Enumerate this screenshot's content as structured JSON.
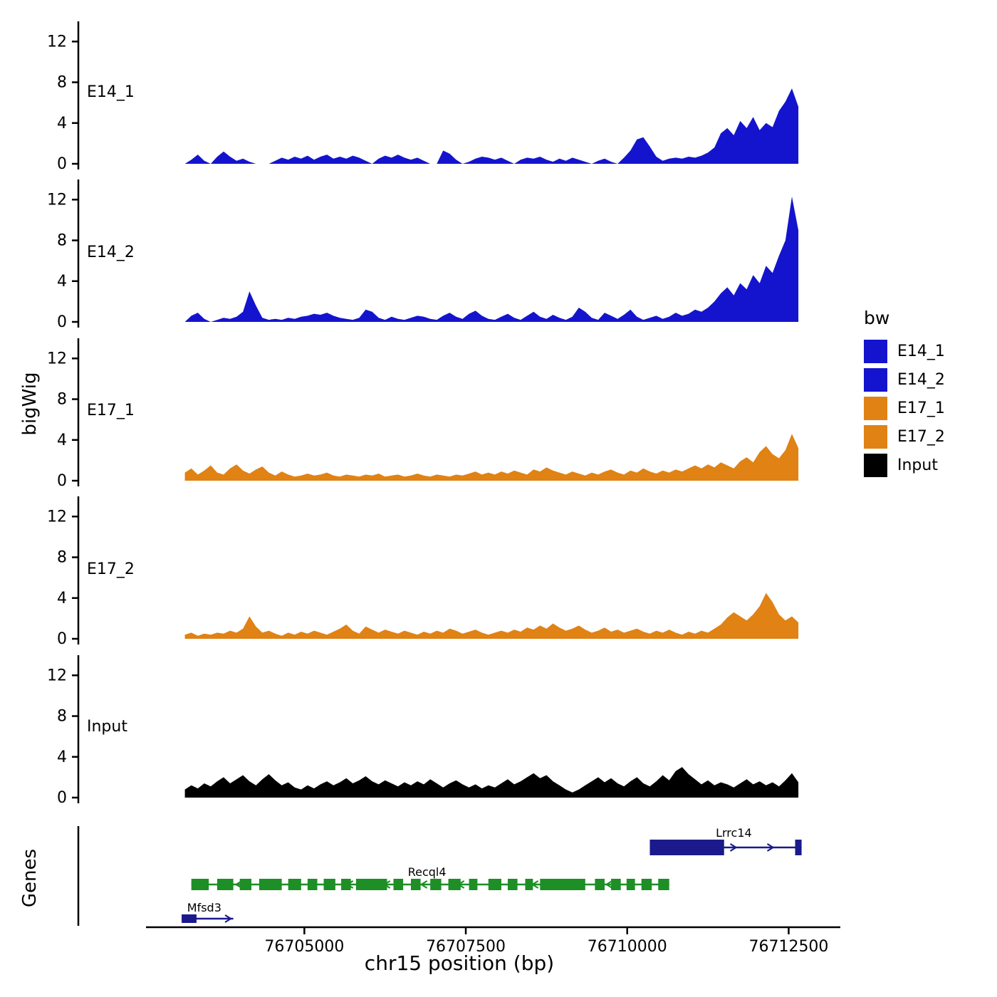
{
  "figure": {
    "ylabel": "bigWig",
    "xlabel": "chr15 position (bp)",
    "genes_label": "Genes",
    "legend": {
      "title": "bw",
      "entries": [
        {
          "label": "E14_1",
          "color": "#1414CE"
        },
        {
          "label": "E14_2",
          "color": "#1414CE"
        },
        {
          "label": "E17_1",
          "color": "#E08214"
        },
        {
          "label": "E17_2",
          "color": "#E08214"
        },
        {
          "label": "Input",
          "color": "#000000"
        }
      ]
    }
  },
  "chart_data": {
    "type": "area",
    "title": "",
    "xlabel": "chr15 position (bp)",
    "ylabel": "bigWig",
    "x_domain": [
      76701500,
      76713300
    ],
    "x_ticks": [
      76705000,
      76707500,
      76710000,
      76712500
    ],
    "y_ticks": [
      0,
      4,
      8,
      12
    ],
    "ylim": [
      0,
      13
    ],
    "series": [
      {
        "name": "E14_1",
        "color": "#1414CE",
        "x0": 76703150,
        "dx": 100,
        "values": [
          0,
          0.4,
          0.9,
          0.3,
          0,
          0.7,
          1.2,
          0.7,
          0.3,
          0.5,
          0.2,
          0,
          0,
          0,
          0.3,
          0.6,
          0.4,
          0.7,
          0.5,
          0.8,
          0.4,
          0.7,
          0.9,
          0.5,
          0.7,
          0.5,
          0.8,
          0.6,
          0.3,
          0,
          0.5,
          0.8,
          0.6,
          0.9,
          0.6,
          0.4,
          0.6,
          0.3,
          0,
          0,
          1.3,
          1.0,
          0.4,
          0,
          0.2,
          0.5,
          0.7,
          0.6,
          0.4,
          0.6,
          0.3,
          0,
          0.4,
          0.6,
          0.5,
          0.7,
          0.4,
          0.2,
          0.5,
          0.3,
          0.6,
          0.4,
          0.2,
          0,
          0.3,
          0.5,
          0.2,
          0,
          0.6,
          1.3,
          2.4,
          2.6,
          1.7,
          0.7,
          0.3,
          0.5,
          0.6,
          0.5,
          0.7,
          0.6,
          0.8,
          1.1,
          1.6,
          3.0,
          3.5,
          2.8,
          4.2,
          3.5,
          4.6,
          3.3,
          4.0,
          3.6,
          5.2,
          6.1,
          7.4,
          5.6
        ]
      },
      {
        "name": "E14_2",
        "color": "#1414CE",
        "x0": 76703150,
        "dx": 100,
        "values": [
          0,
          0.6,
          0.9,
          0.3,
          0,
          0.2,
          0.4,
          0.3,
          0.5,
          1.0,
          3.0,
          1.6,
          0.4,
          0.2,
          0.3,
          0.2,
          0.4,
          0.3,
          0.5,
          0.6,
          0.8,
          0.7,
          0.9,
          0.6,
          0.4,
          0.3,
          0.2,
          0.4,
          1.2,
          1.0,
          0.4,
          0.2,
          0.5,
          0.3,
          0.2,
          0.4,
          0.6,
          0.5,
          0.3,
          0.2,
          0.6,
          0.9,
          0.5,
          0.3,
          0.8,
          1.1,
          0.6,
          0.3,
          0.2,
          0.5,
          0.8,
          0.4,
          0.2,
          0.6,
          1.0,
          0.5,
          0.3,
          0.7,
          0.4,
          0.2,
          0.5,
          1.4,
          1.0,
          0.4,
          0.2,
          0.9,
          0.6,
          0.3,
          0.7,
          1.2,
          0.5,
          0.2,
          0.4,
          0.6,
          0.3,
          0.5,
          0.9,
          0.6,
          0.8,
          1.2,
          1.0,
          1.4,
          2.0,
          2.8,
          3.4,
          2.6,
          3.8,
          3.2,
          4.6,
          3.8,
          5.5,
          4.8,
          6.5,
          8.0,
          12.3,
          9.0
        ]
      },
      {
        "name": "E17_1",
        "color": "#E08214",
        "x0": 76703150,
        "dx": 100,
        "values": [
          0.8,
          1.2,
          0.6,
          1.0,
          1.5,
          0.8,
          0.6,
          1.2,
          1.6,
          1.0,
          0.7,
          1.1,
          1.4,
          0.8,
          0.5,
          0.9,
          0.6,
          0.4,
          0.5,
          0.7,
          0.5,
          0.6,
          0.8,
          0.5,
          0.4,
          0.6,
          0.5,
          0.4,
          0.6,
          0.5,
          0.7,
          0.4,
          0.5,
          0.6,
          0.4,
          0.5,
          0.7,
          0.5,
          0.4,
          0.6,
          0.5,
          0.4,
          0.6,
          0.5,
          0.7,
          0.9,
          0.6,
          0.8,
          0.6,
          0.9,
          0.7,
          1.0,
          0.8,
          0.6,
          1.1,
          0.9,
          1.3,
          1.0,
          0.8,
          0.6,
          0.9,
          0.7,
          0.5,
          0.8,
          0.6,
          0.9,
          1.1,
          0.8,
          0.6,
          1.0,
          0.8,
          1.2,
          0.9,
          0.7,
          1.0,
          0.8,
          1.1,
          0.9,
          1.2,
          1.5,
          1.2,
          1.6,
          1.3,
          1.8,
          1.5,
          1.2,
          1.9,
          2.3,
          1.8,
          2.8,
          3.4,
          2.6,
          2.2,
          3.0,
          4.6,
          3.2
        ]
      },
      {
        "name": "E17_2",
        "color": "#E08214",
        "x0": 76703150,
        "dx": 100,
        "values": [
          0.4,
          0.6,
          0.3,
          0.5,
          0.4,
          0.6,
          0.5,
          0.8,
          0.6,
          1.0,
          2.2,
          1.2,
          0.6,
          0.8,
          0.5,
          0.3,
          0.6,
          0.4,
          0.7,
          0.5,
          0.8,
          0.6,
          0.4,
          0.7,
          1.0,
          1.4,
          0.8,
          0.5,
          1.2,
          0.9,
          0.6,
          0.9,
          0.7,
          0.5,
          0.8,
          0.6,
          0.4,
          0.7,
          0.5,
          0.8,
          0.6,
          1.0,
          0.8,
          0.5,
          0.7,
          0.9,
          0.6,
          0.4,
          0.6,
          0.8,
          0.6,
          0.9,
          0.7,
          1.1,
          0.9,
          1.3,
          1.0,
          1.5,
          1.1,
          0.8,
          1.0,
          1.3,
          0.9,
          0.6,
          0.8,
          1.1,
          0.7,
          0.9,
          0.6,
          0.8,
          1.0,
          0.7,
          0.5,
          0.8,
          0.6,
          0.9,
          0.6,
          0.4,
          0.7,
          0.5,
          0.8,
          0.6,
          1.0,
          1.4,
          2.1,
          2.6,
          2.2,
          1.8,
          2.4,
          3.2,
          4.5,
          3.6,
          2.4,
          1.8,
          2.2,
          1.6
        ]
      },
      {
        "name": "Input",
        "color": "#000000",
        "x0": 76703150,
        "dx": 100,
        "values": [
          0.8,
          1.2,
          0.9,
          1.4,
          1.1,
          1.6,
          2.0,
          1.4,
          1.8,
          2.2,
          1.6,
          1.2,
          1.8,
          2.3,
          1.7,
          1.2,
          1.5,
          1.0,
          0.8,
          1.2,
          0.9,
          1.3,
          1.6,
          1.2,
          1.5,
          1.9,
          1.4,
          1.7,
          2.1,
          1.6,
          1.3,
          1.7,
          1.4,
          1.1,
          1.5,
          1.2,
          1.6,
          1.3,
          1.8,
          1.4,
          1.0,
          1.4,
          1.7,
          1.3,
          1.0,
          1.3,
          0.9,
          1.2,
          1.0,
          1.4,
          1.8,
          1.3,
          1.6,
          2.0,
          2.4,
          1.9,
          2.2,
          1.6,
          1.2,
          0.8,
          0.5,
          0.8,
          1.2,
          1.6,
          2.0,
          1.5,
          1.9,
          1.4,
          1.1,
          1.6,
          2.0,
          1.4,
          1.1,
          1.6,
          2.2,
          1.7,
          2.6,
          3.0,
          2.3,
          1.8,
          1.3,
          1.7,
          1.2,
          1.5,
          1.3,
          1.0,
          1.4,
          1.8,
          1.3,
          1.6,
          1.2,
          1.5,
          1.1,
          1.7,
          2.4,
          1.5
        ]
      }
    ],
    "genes": [
      {
        "name": "Lrrc14",
        "strand": "+",
        "row": 0,
        "color": "#1A1A8C",
        "start": 76710350,
        "end": 76712700,
        "label_bp": 76711650,
        "exons": [
          [
            76710350,
            76711500
          ],
          [
            76712600,
            76712700
          ]
        ]
      },
      {
        "name": "Recql4",
        "strand": "-",
        "row": 1,
        "color": "#1E8E26",
        "start": 76703250,
        "end": 76710650,
        "label_bp": 76706900,
        "exons": [
          [
            76703250,
            76703520
          ],
          [
            76703650,
            76703900
          ],
          [
            76704000,
            76704180
          ],
          [
            76704300,
            76704650
          ],
          [
            76704750,
            76704950
          ],
          [
            76705050,
            76705200
          ],
          [
            76705300,
            76705480
          ],
          [
            76705570,
            76705720
          ],
          [
            76705800,
            76706280
          ],
          [
            76706380,
            76706530
          ],
          [
            76706650,
            76706800
          ],
          [
            76706950,
            76707120
          ],
          [
            76707230,
            76707420
          ],
          [
            76707550,
            76707680
          ],
          [
            76707850,
            76708050
          ],
          [
            76708150,
            76708300
          ],
          [
            76708420,
            76708540
          ],
          [
            76708650,
            76709350
          ],
          [
            76709500,
            76709650
          ],
          [
            76709750,
            76709900
          ],
          [
            76709990,
            76710120
          ],
          [
            76710220,
            76710380
          ],
          [
            76710480,
            76710650
          ]
        ]
      },
      {
        "name": "Mfsd3",
        "strand": "+",
        "row": 2,
        "color": "#1A1A8C",
        "start": 76703100,
        "end": 76703900,
        "label_bp": 76703450,
        "exons": [
          [
            76703100,
            76703330
          ]
        ]
      }
    ]
  }
}
